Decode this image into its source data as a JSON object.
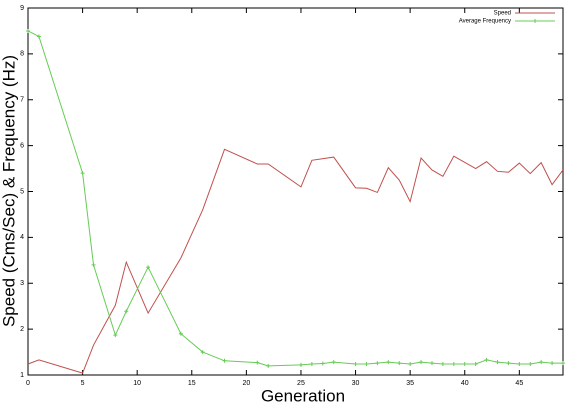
{
  "chart_data": {
    "type": "line",
    "x_label": "Generation",
    "y_label": "Speed (Cms/Sec) & Frequency (Hz)",
    "xlim": [
      0,
      49
    ],
    "ylim": [
      1,
      9
    ],
    "xticks": [
      0,
      5,
      10,
      15,
      20,
      25,
      30,
      35,
      40,
      45
    ],
    "yticks": [
      1,
      2,
      3,
      4,
      5,
      6,
      7,
      8,
      9
    ],
    "legend": "top-right",
    "series": [
      {
        "name": "Speed",
        "color": "#c0504d",
        "markers": false,
        "x": [
          0,
          1,
          5,
          6,
          8,
          9,
          11,
          14,
          16,
          18,
          21,
          22,
          25,
          26,
          28,
          30,
          31,
          32,
          33,
          34,
          35,
          36,
          37,
          38,
          39,
          41,
          42,
          43,
          44,
          45,
          46,
          47,
          48,
          49
        ],
        "values": [
          1.24,
          1.33,
          1.04,
          1.65,
          2.52,
          3.46,
          2.35,
          3.55,
          4.6,
          5.92,
          5.6,
          5.6,
          5.1,
          5.68,
          5.75,
          5.08,
          5.07,
          4.98,
          5.52,
          5.25,
          4.78,
          5.73,
          5.47,
          5.33,
          5.77,
          5.5,
          5.65,
          5.44,
          5.42,
          5.62,
          5.39,
          5.63,
          5.15,
          5.47
        ]
      },
      {
        "name": "Average Frequency",
        "color": "#66cc55",
        "markers": true,
        "x": [
          0,
          1,
          5,
          6,
          8,
          9,
          11,
          14,
          16,
          18,
          21,
          22,
          25,
          26,
          27,
          28,
          30,
          31,
          32,
          33,
          34,
          35,
          36,
          37,
          38,
          39,
          40,
          41,
          42,
          43,
          44,
          45,
          46,
          47,
          48,
          49
        ],
        "values": [
          8.5,
          8.38,
          5.4,
          3.4,
          1.87,
          2.39,
          3.35,
          1.9,
          1.5,
          1.31,
          1.27,
          1.2,
          1.22,
          1.24,
          1.25,
          1.28,
          1.24,
          1.24,
          1.26,
          1.28,
          1.26,
          1.24,
          1.28,
          1.26,
          1.24,
          1.24,
          1.24,
          1.24,
          1.33,
          1.28,
          1.26,
          1.24,
          1.24,
          1.28,
          1.26,
          1.26
        ]
      }
    ]
  }
}
